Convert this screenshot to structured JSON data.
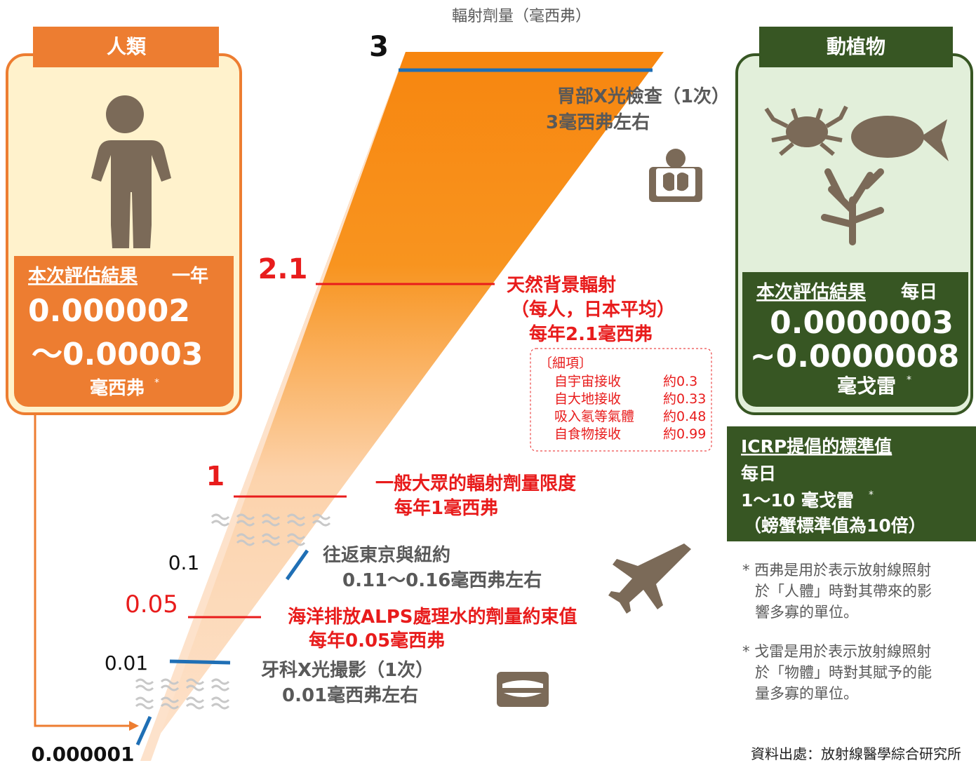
{
  "axis_label": "輻射劑量（毫西弗）",
  "humans": {
    "header": "人類",
    "result_label": "本次評估結果",
    "period": "一年",
    "value_from": "0.000002",
    "value_to": "～0.00003",
    "unit": "毫西弗",
    "asterisk": "*"
  },
  "animals": {
    "header": "動植物",
    "result_label": "本次評估結果",
    "period": "每日",
    "value_from": "0.0000003",
    "value_to": "~0.0000008",
    "unit": "毫戈雷",
    "asterisk": "*"
  },
  "levels": [
    "3",
    "2.1",
    "1",
    "0.1",
    "0.05",
    "0.01",
    "0.000001"
  ],
  "annotations": {
    "stomach_xray": [
      "胃部X光檢查（1次）",
      "3毫西弗左右"
    ],
    "natural_background": [
      "天然背景輻射",
      "（每人，日本平均）",
      "每年2.1毫西弗"
    ],
    "public_limit": [
      "一般大眾的輻射劑量限度",
      "每年1毫西弗"
    ],
    "flight": [
      "往返東京與紐約",
      "0.11～0.16毫西弗左右"
    ],
    "alps": [
      "海洋排放ALPS處理水的劑量約束值",
      "每年0.05毫西弗"
    ],
    "dental_xray": [
      "牙科X光撮影（1次）",
      "0.01毫西弗左右"
    ]
  },
  "breakdown": {
    "title": "〔細項〕",
    "items": [
      [
        "自宇宙接收",
        "約0.3"
      ],
      [
        "自大地接收",
        "約0.33"
      ],
      [
        "吸入氡等氣體",
        "約0.48"
      ],
      [
        "自食物接收",
        "約0.99"
      ]
    ]
  },
  "icrp": {
    "title": "ICRP提倡的標準值",
    "period": "每日",
    "value": "1～10 毫戈雷",
    "asterisk": "*",
    "note": "（螃蟹標準值為10倍）"
  },
  "notes": [
    [
      "* 西弗是用於表示放射線照射",
      "於「人體」時對其帶來的影",
      "響多寡的單位。"
    ],
    [
      "* 戈雷是用於表示放射線照射",
      "於「物體」時對其賦予的能",
      "量多寡的單位。"
    ]
  ],
  "source": "資料出處：放射線醫學綜合研究所"
}
